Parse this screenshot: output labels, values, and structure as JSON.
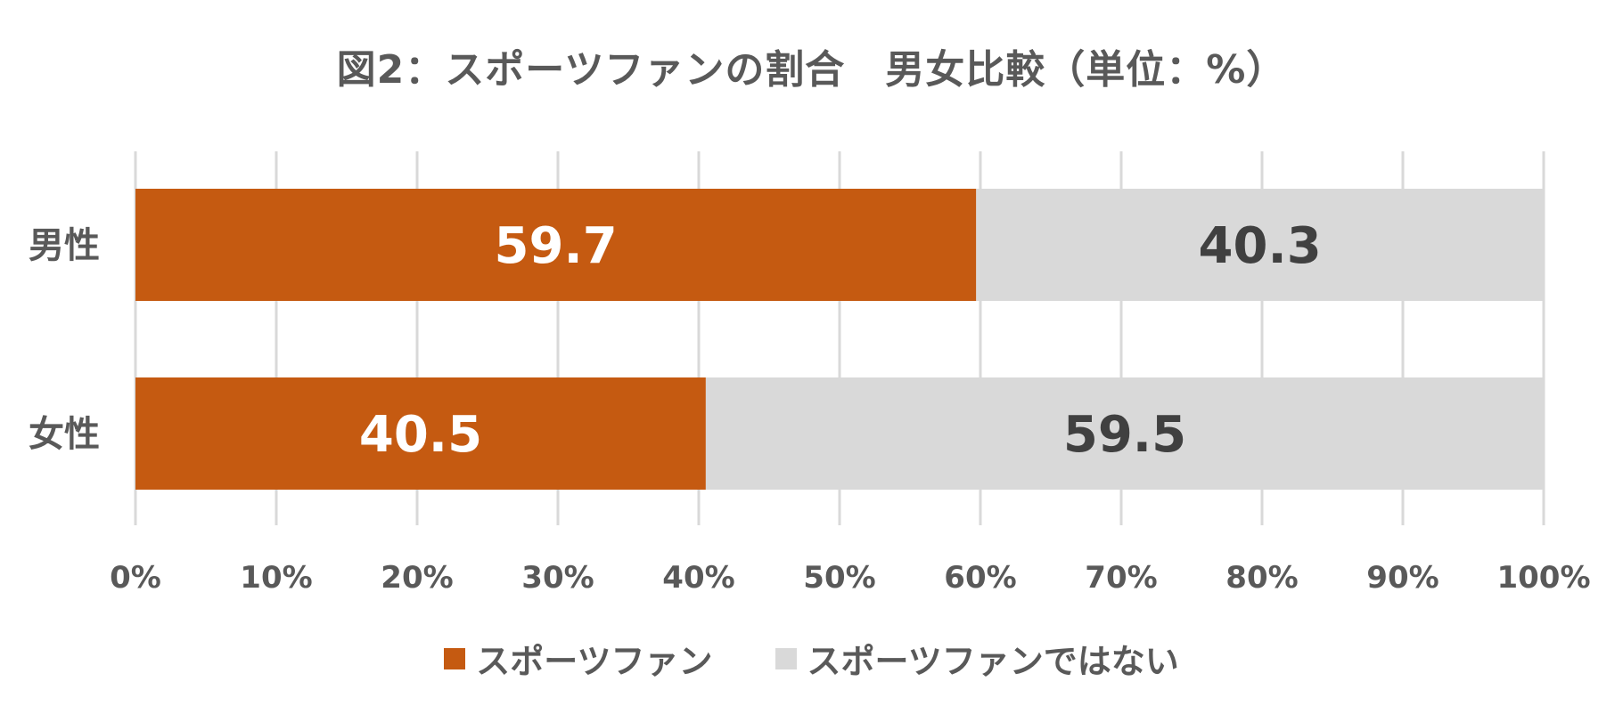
{
  "chart_data": {
    "type": "bar",
    "orientation": "horizontal",
    "stacked": "percent",
    "title": "図2：スポーツファンの割合　男女比較（単位：%）",
    "categories": [
      "男性",
      "女性"
    ],
    "series": [
      {
        "name": "スポーツファン",
        "values": [
          59.7,
          40.5
        ],
        "color": "#C55A11",
        "label_color": "#FFFFFF"
      },
      {
        "name": "スポーツファンではない",
        "values": [
          40.3,
          59.5
        ],
        "color": "#D9D9D9",
        "label_color": "#404040"
      }
    ],
    "data_labels": [
      [
        "59.7",
        "40.5"
      ],
      [
        "40.3",
        "59.5"
      ]
    ],
    "xlim": [
      0,
      100
    ],
    "x_ticks": [
      0,
      10,
      20,
      30,
      40,
      50,
      60,
      70,
      80,
      90,
      100
    ],
    "x_tick_labels": [
      "0%",
      "10%",
      "20%",
      "30%",
      "40%",
      "50%",
      "60%",
      "70%",
      "80%",
      "90%",
      "100%"
    ],
    "grid": "vertical",
    "legend_position": "bottom"
  }
}
